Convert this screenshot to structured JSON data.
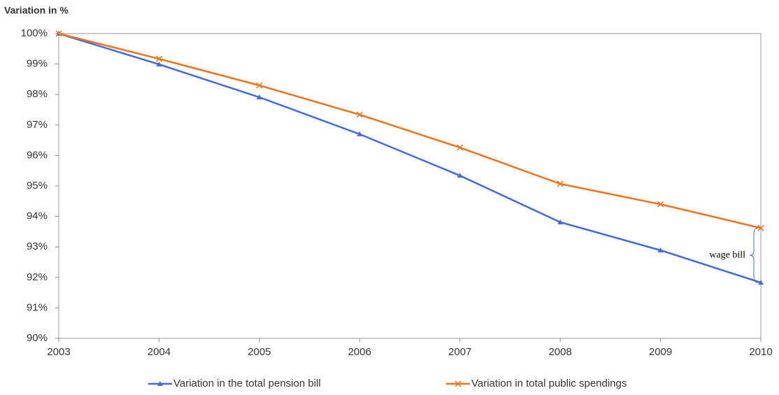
{
  "chart_data": {
    "type": "line",
    "y_label": "Variation in %",
    "x": [
      2003,
      2004,
      2005,
      2006,
      2007,
      2008,
      2009,
      2010
    ],
    "series": [
      {
        "name": "Variation in the total pension bill",
        "color": "#4169e1",
        "marker": "triangle",
        "values": [
          100,
          98.99,
          97.91,
          96.7,
          95.34,
          93.81,
          92.89,
          91.83
        ]
      },
      {
        "name": "Variation in total public spendings",
        "color": "#f47216",
        "marker": "x",
        "values": [
          100,
          99.17,
          98.3,
          97.34,
          96.26,
          95.07,
          94.4,
          93.62
        ]
      }
    ],
    "xlim": [
      2003,
      2010
    ],
    "xticks": [
      2003,
      2004,
      2005,
      2006,
      2007,
      2008,
      2009,
      2010
    ],
    "ylim": [
      90,
      100
    ],
    "yticks": [
      {
        "value": 90,
        "label": "90%"
      },
      {
        "value": 91,
        "label": "91%"
      },
      {
        "value": 92,
        "label": "92%"
      },
      {
        "value": 93,
        "label": "93%"
      },
      {
        "value": 94,
        "label": "94%"
      },
      {
        "value": 95,
        "label": "95%"
      },
      {
        "value": 96,
        "label": "96%"
      },
      {
        "value": 97,
        "label": "97%"
      },
      {
        "value": 98,
        "label": "98%"
      },
      {
        "value": 99,
        "label": "99%"
      },
      {
        "value": 100,
        "label": "100%"
      }
    ],
    "grid": false,
    "legend": "bottom",
    "annotation": "wage bill"
  }
}
